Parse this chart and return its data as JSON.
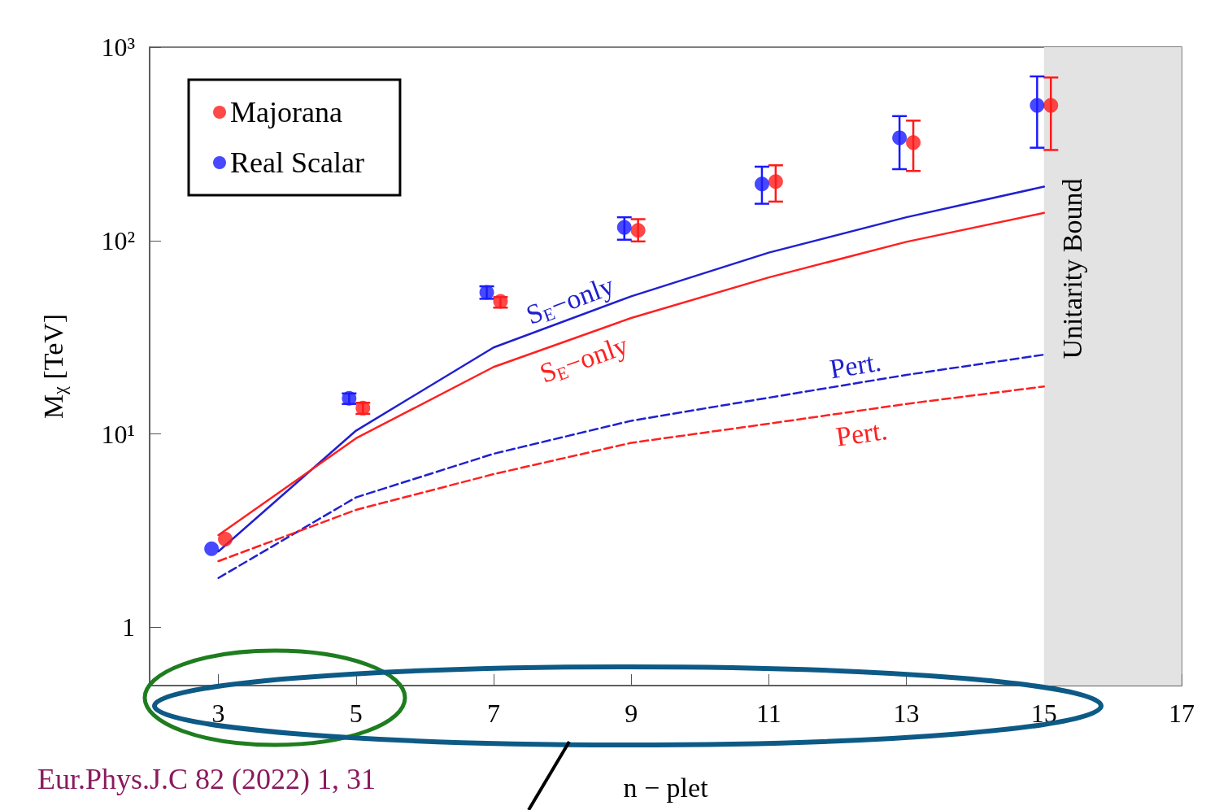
{
  "chart_data": {
    "type": "scatter",
    "xlabel": "n − plet",
    "ylabel": "M$_{χ}$ [TeV]",
    "xlim": [
      2,
      17
    ],
    "xticks": [
      3,
      5,
      7,
      9,
      11,
      13,
      15,
      17
    ],
    "ylim": [
      0.5,
      1000
    ],
    "yticks": [
      {
        "value": 1,
        "label": "1"
      },
      {
        "value": 10,
        "label": "10¹"
      },
      {
        "value": 100,
        "label": "10²"
      },
      {
        "value": 1000,
        "label": "10³"
      }
    ],
    "log": "y",
    "grid": false,
    "legend": "top left",
    "bands": [
      {
        "axis": "x",
        "from": 15,
        "to": 17,
        "label": "Unitarity Bound",
        "color": "#e3e3e3"
      }
    ],
    "annotations": [
      "Eur.Phys.J.C 82 (2022) 1, 31"
    ],
    "series": [
      {
        "name": "Majorana",
        "marker": "circle",
        "color": "#ff1a1a",
        "x": [
          3.1,
          5.1,
          7.1,
          9.1,
          11.1,
          13.1,
          15.1
        ],
        "values": [
          2.86,
          13.6,
          48.5,
          113,
          202,
          321,
          500
        ],
        "errors": [
          null,
          [
            12.7,
            14.5
          ],
          [
            45,
            51
          ],
          [
            99,
            129
          ],
          [
            159,
            245
          ],
          [
            229,
            417
          ],
          [
            294,
            697
          ]
        ]
      },
      {
        "name": "Real Scalar",
        "marker": "circle",
        "color": "#1a1aff",
        "x": [
          2.9,
          4.9,
          6.9,
          8.9,
          10.9,
          12.9,
          14.9
        ],
        "values": [
          2.55,
          15.3,
          54,
          117,
          196,
          340,
          500
        ],
        "errors": [
          null,
          [
            14.3,
            16.2
          ],
          [
            50,
            58
          ],
          [
            101,
            132
          ],
          [
            155,
            241
          ],
          [
            234,
            440
          ],
          [
            302,
            706
          ]
        ]
      },
      {
        "name": "S$_{E}$−only",
        "type": "line",
        "marker": "none",
        "line_style": "solid",
        "color": "#2020d0",
        "x": [
          3,
          5,
          7,
          9,
          11,
          13,
          15
        ],
        "values": [
          2.47,
          10.4,
          28,
          51.5,
          86.6,
          132,
          190
        ]
      },
      {
        "name": "S$_{E}$−only",
        "type": "line",
        "marker": "none",
        "line_style": "solid",
        "color": "#ff2020",
        "x": [
          3,
          5,
          7,
          9,
          11,
          13,
          15
        ],
        "values": [
          3.0,
          9.5,
          22.2,
          39.8,
          64.5,
          98.5,
          139
        ]
      },
      {
        "name": "Pert.",
        "type": "line",
        "marker": "none",
        "line_style": "dashed",
        "color": "#2020d0",
        "x": [
          3,
          5,
          7,
          9,
          11,
          13,
          15
        ],
        "values": [
          1.8,
          4.7,
          7.9,
          11.7,
          15.4,
          20.2,
          25.7
        ]
      },
      {
        "name": "Pert.",
        "type": "line",
        "marker": "none",
        "line_style": "dashed",
        "color": "#ff2020",
        "x": [
          3,
          5,
          7,
          9,
          11,
          13,
          15
        ],
        "values": [
          2.2,
          4.05,
          6.2,
          9.0,
          11.3,
          14.3,
          17.6
        ]
      }
    ]
  }
}
